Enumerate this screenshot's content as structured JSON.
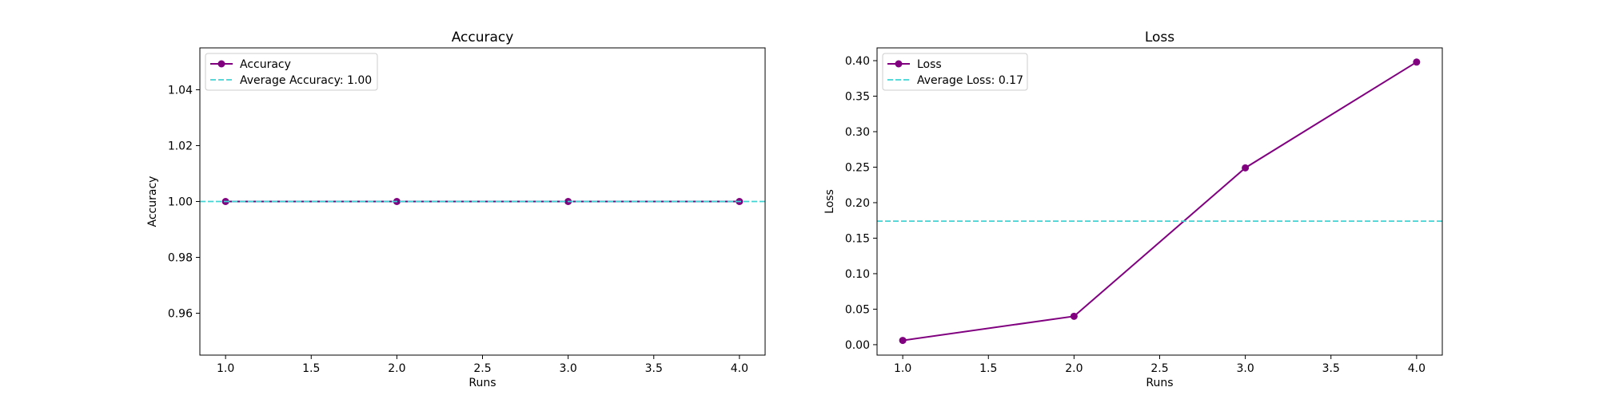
{
  "chart_data": [
    {
      "type": "line",
      "title": "Accuracy",
      "xlabel": "Runs",
      "ylabel": "Accuracy",
      "xlim": [
        0.85,
        4.15
      ],
      "ylim": [
        0.945,
        1.055
      ],
      "xticks": [
        1.0,
        1.5,
        2.0,
        2.5,
        3.0,
        3.5,
        4.0
      ],
      "yticks": [
        0.96,
        0.98,
        1.0,
        1.02,
        1.04
      ],
      "xtick_labels": [
        "1.0",
        "1.5",
        "2.0",
        "2.5",
        "3.0",
        "3.5",
        "4.0"
      ],
      "ytick_labels": [
        "0.96",
        "0.98",
        "1.00",
        "1.02",
        "1.04"
      ],
      "grid": false,
      "legend_position": "upper-left",
      "series": [
        {
          "name": "Accuracy",
          "x": [
            1,
            2,
            3,
            4
          ],
          "y": [
            1.0,
            1.0,
            1.0,
            1.0
          ],
          "color": "#800080",
          "marker": "circle",
          "style": "solid"
        }
      ],
      "hlines": [
        {
          "name": "Average Accuracy: 1.00",
          "y": 1.0,
          "color": "#40d4d4",
          "style": "dashed"
        }
      ]
    },
    {
      "type": "line",
      "title": "Loss",
      "xlabel": "Runs",
      "ylabel": "Loss",
      "xlim": [
        0.85,
        4.15
      ],
      "ylim": [
        -0.0147,
        0.418
      ],
      "xticks": [
        1.0,
        1.5,
        2.0,
        2.5,
        3.0,
        3.5,
        4.0
      ],
      "yticks": [
        0.0,
        0.05,
        0.1,
        0.15,
        0.2,
        0.25,
        0.3,
        0.35,
        0.4
      ],
      "xtick_labels": [
        "1.0",
        "1.5",
        "2.0",
        "2.5",
        "3.0",
        "3.5",
        "4.0"
      ],
      "ytick_labels": [
        "0.00",
        "0.05",
        "0.10",
        "0.15",
        "0.20",
        "0.25",
        "0.30",
        "0.35",
        "0.40"
      ],
      "grid": false,
      "legend_position": "upper-left",
      "series": [
        {
          "name": "Loss",
          "x": [
            1,
            2,
            3,
            4
          ],
          "y": [
            0.006,
            0.04,
            0.249,
            0.398
          ],
          "color": "#800080",
          "marker": "circle",
          "style": "solid"
        }
      ],
      "hlines": [
        {
          "name": "Average Loss: 0.17",
          "y": 0.174,
          "color": "#40d4d4",
          "style": "dashed"
        }
      ]
    }
  ]
}
